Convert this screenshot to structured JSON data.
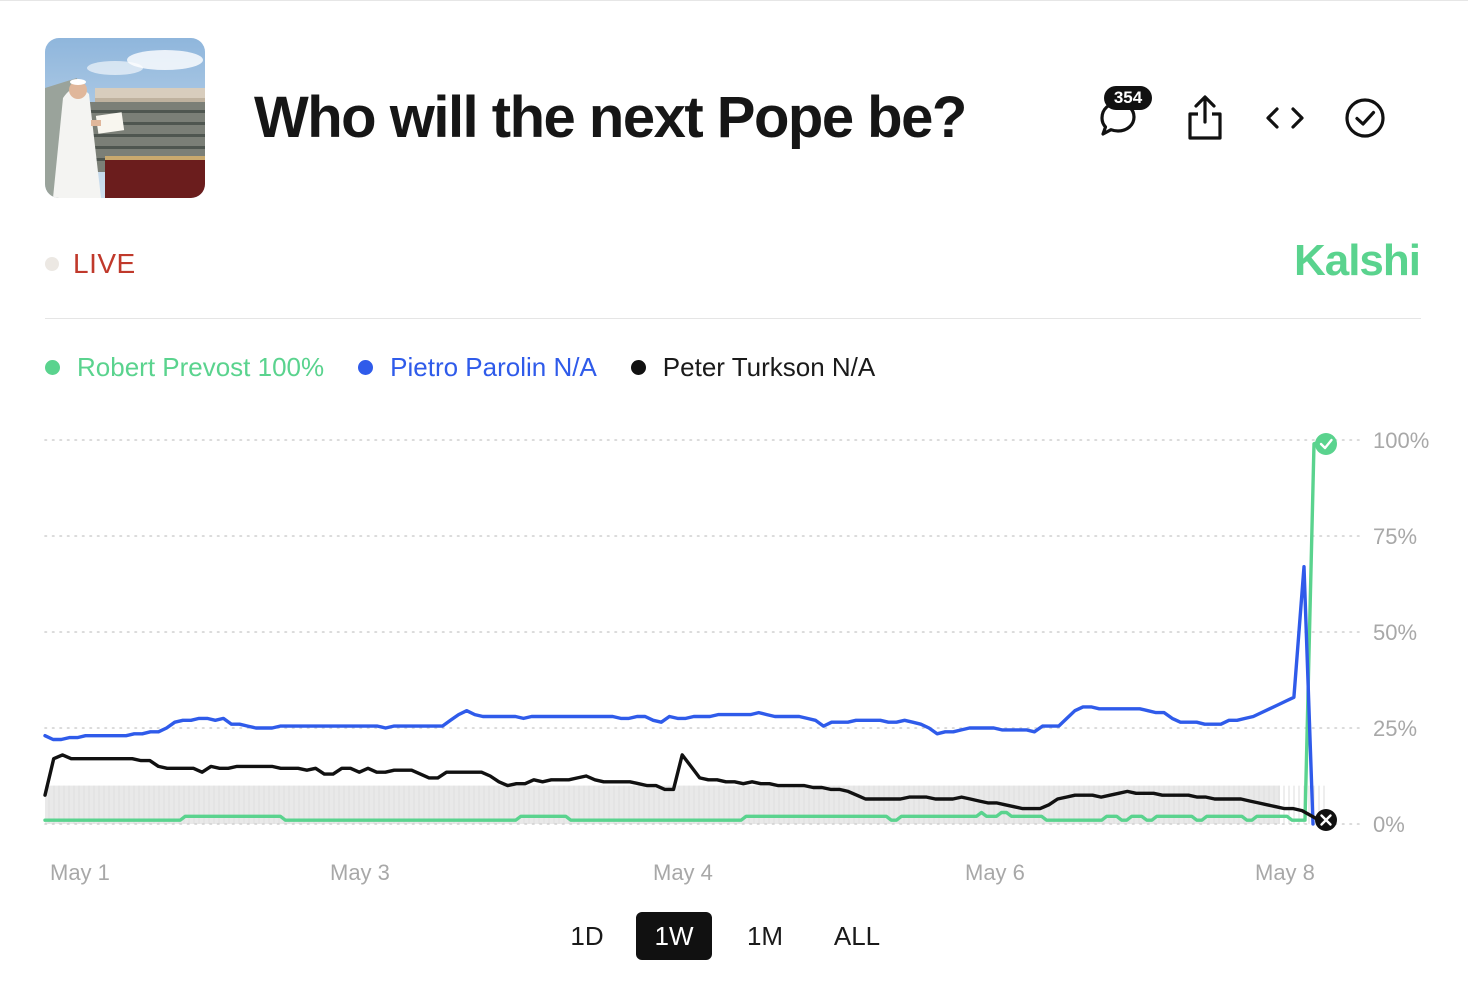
{
  "header": {
    "title": "Who will the next Pope be?",
    "comment_count": "354",
    "icons": [
      "comment-icon",
      "share-icon",
      "embed-icon",
      "check-circle-icon"
    ]
  },
  "status": {
    "live_label": "LIVE"
  },
  "brand": {
    "name": "Kalshi",
    "color": "#5ad38e"
  },
  "legend": {
    "items": [
      {
        "name": "Robert Prevost",
        "value": "100%",
        "color": "#5ad38e"
      },
      {
        "name": "Pietro Parolin",
        "value": "N/A",
        "color": "#2f5bea"
      },
      {
        "name": "Peter Turkson",
        "value": "N/A",
        "color": "#111111"
      }
    ]
  },
  "chart_data": {
    "type": "line",
    "x_tick_labels": [
      "May 1",
      "May 3",
      "May 4",
      "May 6",
      "May 8"
    ],
    "y_tick_labels": [
      "100%",
      "75%",
      "50%",
      "25%",
      "0%"
    ],
    "ylim": [
      0,
      100
    ],
    "grid": true,
    "series": [
      {
        "name": "Robert Prevost",
        "color": "#5ad38e",
        "values": [
          1,
          1,
          1,
          1,
          1,
          1,
          1,
          1,
          1,
          1,
          1,
          1,
          1,
          1,
          1,
          1,
          1,
          1,
          1,
          1,
          1,
          1,
          1,
          1,
          1,
          1,
          1,
          1,
          2,
          2,
          2,
          2,
          2,
          2,
          2,
          2,
          2,
          2,
          2,
          2,
          2,
          2,
          2,
          2,
          2,
          2,
          2,
          2,
          1,
          1,
          1,
          1,
          1,
          1,
          1,
          1,
          1,
          1,
          1,
          1,
          1,
          1,
          1,
          1,
          1,
          1,
          1,
          1,
          1,
          1,
          1,
          1,
          1,
          1,
          1,
          1,
          1,
          1,
          1,
          1,
          1,
          1,
          1,
          1,
          1,
          1,
          1,
          1,
          1,
          1,
          1,
          1,
          1,
          1,
          1,
          2,
          2,
          2,
          2,
          2,
          2,
          2,
          2,
          2,
          2,
          1,
          1,
          1,
          1,
          1,
          1,
          1,
          1,
          1,
          1,
          1,
          1,
          1,
          1,
          1,
          1,
          1,
          1,
          1,
          1,
          1,
          1,
          1,
          1,
          1,
          1,
          1,
          1,
          1,
          1,
          1,
          1,
          1,
          1,
          1,
          2,
          2,
          2,
          2,
          2,
          2,
          2,
          2,
          2,
          2,
          2,
          2,
          2,
          2,
          2,
          2,
          2,
          2,
          2,
          2,
          2,
          2,
          2,
          2,
          2,
          2,
          2,
          2,
          2,
          1,
          1,
          2,
          2,
          2,
          2,
          2,
          2,
          2,
          2,
          2,
          2,
          2,
          2,
          2,
          2,
          2,
          2,
          3,
          2,
          2,
          2,
          3,
          3,
          2,
          2,
          2,
          2,
          2,
          2,
          2,
          1,
          1,
          1,
          1,
          1,
          1,
          1,
          1,
          1,
          1,
          1,
          1,
          2,
          2,
          2,
          1,
          1,
          2,
          2,
          2,
          1,
          1,
          2,
          2,
          2,
          2,
          2,
          2,
          2,
          2,
          1,
          1,
          2,
          2,
          2,
          2,
          2,
          2,
          2,
          2,
          1,
          1,
          2,
          2,
          2,
          2,
          2,
          2,
          2,
          1,
          1,
          99,
          100
        ]
      },
      {
        "name": "Pietro Parolin",
        "color": "#2f5bea",
        "values": [
          23,
          22,
          22,
          22.5,
          22.5,
          23,
          23,
          23,
          23,
          23,
          23,
          23.5,
          23.5,
          24,
          24,
          25,
          26.5,
          27,
          27,
          27.5,
          27.5,
          27,
          27.5,
          26,
          26,
          25.5,
          25,
          25,
          25,
          25.5,
          25.5,
          25.5,
          25.5,
          25.5,
          25.5,
          25.5,
          25.5,
          25.5,
          25.5,
          25.5,
          25.5,
          25.5,
          25,
          25.5,
          25.5,
          25.5,
          25.5,
          25.5,
          25.5,
          25.5,
          27,
          28.5,
          29.5,
          28.5,
          28,
          28,
          28,
          28,
          28,
          27.5,
          28,
          28,
          28,
          28,
          28,
          28,
          28,
          28,
          28,
          28,
          28,
          27.5,
          27.5,
          28,
          28,
          27,
          26.5,
          28,
          27.5,
          27.5,
          28,
          28,
          28,
          28.5,
          28.5,
          28.5,
          28.5,
          28.5,
          29,
          28.5,
          28,
          28,
          28,
          28,
          27.5,
          27,
          25.5,
          26.5,
          26.5,
          26.5,
          27,
          27,
          27,
          27,
          26.5,
          26.5,
          27,
          26.5,
          26,
          25,
          23.5,
          24,
          24,
          24.5,
          25,
          25,
          25,
          25,
          24.5,
          24.5,
          24.5,
          24.5,
          24,
          25.5,
          25.5,
          25.5,
          27.5,
          29.5,
          30.5,
          30.5,
          30,
          30,
          30,
          30,
          30,
          30,
          29.5,
          29,
          29,
          27.5,
          26.5,
          26.5,
          26.5,
          26,
          26,
          26,
          27,
          27,
          27.5,
          28,
          29,
          30,
          31,
          32,
          33,
          67,
          0
        ]
      },
      {
        "name": "Peter Turkson",
        "color": "#111111",
        "values": [
          7.5,
          17,
          18,
          17,
          17,
          17,
          17,
          17,
          17,
          17,
          17,
          16.5,
          16.5,
          15,
          14.5,
          14.5,
          14.5,
          14.5,
          13.5,
          15,
          14.5,
          14.5,
          15,
          15,
          15,
          15,
          15,
          14.5,
          14.5,
          14.5,
          14,
          14.5,
          13,
          13,
          14.5,
          14.5,
          13.5,
          14.5,
          13.5,
          13.5,
          14,
          14,
          14,
          13,
          12,
          12,
          13.5,
          13.5,
          13.5,
          13.5,
          13.5,
          12.5,
          11,
          10,
          10.5,
          10.5,
          11.5,
          11,
          11.5,
          11.5,
          11.5,
          12,
          12.5,
          11.5,
          11,
          11,
          11,
          11,
          10.5,
          10,
          10,
          9,
          9,
          18,
          15,
          12,
          11.5,
          11.5,
          11,
          11,
          10.5,
          11,
          10.5,
          10.5,
          10,
          10,
          10,
          10,
          9.5,
          9.5,
          9,
          9,
          8.5,
          7.5,
          6.5,
          6.5,
          6.5,
          6.5,
          6.5,
          7,
          7,
          7,
          6.5,
          6.5,
          6.5,
          7,
          6.5,
          6,
          5.5,
          5.5,
          5,
          4.5,
          4,
          4,
          4,
          5,
          6.5,
          7,
          7.5,
          7.5,
          7.5,
          7,
          7.5,
          8,
          8.5,
          8,
          8,
          8,
          7.5,
          7.5,
          7.5,
          7.5,
          7,
          7,
          6.5,
          6.5,
          6.5,
          6.5,
          6,
          5.5,
          5,
          4.5,
          4,
          4,
          3.5,
          0
        ]
      }
    ]
  },
  "ranges": {
    "options": [
      "1D",
      "1W",
      "1M",
      "ALL"
    ],
    "selected": "1W"
  }
}
